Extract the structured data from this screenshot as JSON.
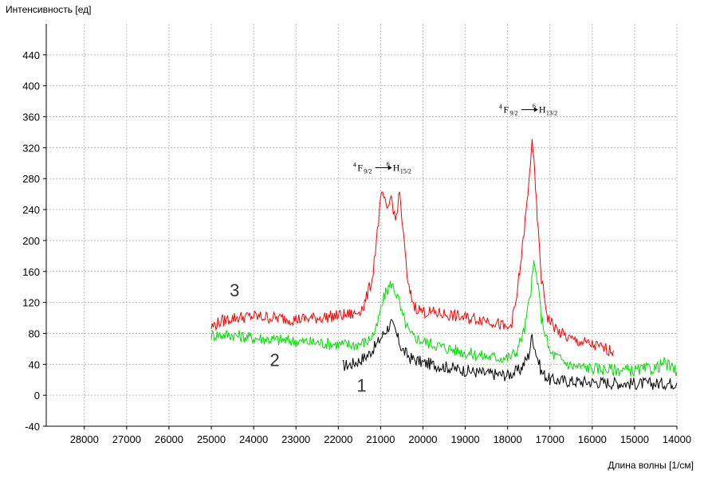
{
  "chart_data": {
    "type": "line",
    "ylabel": "Интенсивность [ед]",
    "xlabel": "Длина волны [1/см]",
    "xlim": [
      28900,
      14000
    ],
    "ylim": [
      -40,
      480
    ],
    "x_ticks": [
      28000,
      27000,
      26000,
      25000,
      24000,
      23000,
      22000,
      21000,
      20000,
      19000,
      18000,
      17000,
      16000,
      15000,
      14000
    ],
    "y_ticks": [
      -40,
      0,
      40,
      80,
      120,
      160,
      200,
      240,
      280,
      320,
      360,
      400,
      440
    ],
    "grid": true,
    "series": [
      {
        "name": "1",
        "color": "#000000",
        "points": [
          [
            21900,
            38
          ],
          [
            21700,
            40
          ],
          [
            21500,
            45
          ],
          [
            21300,
            52
          ],
          [
            21100,
            65
          ],
          [
            20900,
            82
          ],
          [
            20750,
            93
          ],
          [
            20650,
            82
          ],
          [
            20500,
            60
          ],
          [
            20300,
            48
          ],
          [
            20000,
            42
          ],
          [
            19500,
            37
          ],
          [
            19000,
            32
          ],
          [
            18500,
            28
          ],
          [
            18000,
            26
          ],
          [
            17700,
            33
          ],
          [
            17500,
            52
          ],
          [
            17420,
            78
          ],
          [
            17350,
            60
          ],
          [
            17200,
            30
          ],
          [
            17000,
            20
          ],
          [
            16500,
            18
          ],
          [
            16000,
            17
          ],
          [
            15500,
            16
          ],
          [
            15000,
            15
          ],
          [
            14500,
            15
          ],
          [
            14000,
            16
          ]
        ]
      },
      {
        "name": "2",
        "color": "#00dd00",
        "points": [
          [
            25000,
            78
          ],
          [
            24500,
            78
          ],
          [
            24000,
            74
          ],
          [
            23500,
            72
          ],
          [
            23000,
            70
          ],
          [
            22500,
            68
          ],
          [
            22000,
            66
          ],
          [
            21600,
            65
          ],
          [
            21300,
            70
          ],
          [
            21100,
            85
          ],
          [
            21000,
            110
          ],
          [
            20900,
            130
          ],
          [
            20750,
            145
          ],
          [
            20600,
            128
          ],
          [
            20500,
            105
          ],
          [
            20300,
            78
          ],
          [
            20000,
            70
          ],
          [
            19500,
            62
          ],
          [
            19000,
            55
          ],
          [
            18500,
            50
          ],
          [
            18000,
            48
          ],
          [
            17800,
            55
          ],
          [
            17600,
            85
          ],
          [
            17450,
            135
          ],
          [
            17380,
            170
          ],
          [
            17300,
            150
          ],
          [
            17200,
            100
          ],
          [
            17000,
            55
          ],
          [
            16500,
            38
          ],
          [
            16000,
            35
          ],
          [
            15500,
            33
          ],
          [
            15000,
            32
          ],
          [
            14500,
            35
          ],
          [
            14300,
            42
          ],
          [
            14000,
            30
          ]
        ]
      },
      {
        "name": "3",
        "color": "#ff0000",
        "points": [
          [
            25000,
            88
          ],
          [
            24800,
            95
          ],
          [
            24500,
            100
          ],
          [
            24000,
            102
          ],
          [
            23500,
            100
          ],
          [
            23000,
            98
          ],
          [
            22500,
            100
          ],
          [
            22000,
            103
          ],
          [
            21600,
            105
          ],
          [
            21400,
            115
          ],
          [
            21200,
            150
          ],
          [
            21100,
            200
          ],
          [
            21000,
            250
          ],
          [
            20950,
            262
          ],
          [
            20850,
            235
          ],
          [
            20750,
            258
          ],
          [
            20650,
            225
          ],
          [
            20550,
            262
          ],
          [
            20450,
            200
          ],
          [
            20350,
            140
          ],
          [
            20200,
            115
          ],
          [
            20000,
            108
          ],
          [
            19500,
            105
          ],
          [
            19000,
            100
          ],
          [
            18500,
            98
          ],
          [
            18200,
            92
          ],
          [
            18000,
            85
          ],
          [
            17900,
            95
          ],
          [
            17800,
            120
          ],
          [
            17650,
            190
          ],
          [
            17500,
            270
          ],
          [
            17420,
            335
          ],
          [
            17380,
            300
          ],
          [
            17300,
            230
          ],
          [
            17200,
            150
          ],
          [
            17050,
            100
          ],
          [
            16800,
            82
          ],
          [
            16500,
            72
          ],
          [
            16200,
            68
          ],
          [
            16000,
            65
          ],
          [
            15700,
            60
          ],
          [
            15500,
            58
          ]
        ]
      }
    ],
    "curve_labels": [
      {
        "text": "3",
        "x": 24450,
        "y": 128
      },
      {
        "text": "2",
        "x": 23500,
        "y": 38
      },
      {
        "text": "1",
        "x": 21450,
        "y": 5
      }
    ],
    "annotations": [
      {
        "sup1": "4",
        "a": "F",
        "suba": "9/2",
        "sup2": "6",
        "b": "H",
        "subb": "15/2",
        "x": 20900,
        "y": 290
      },
      {
        "sup1": "4",
        "a": "F",
        "suba": "9/2",
        "sup2": "6",
        "b": "H",
        "subb": "13/2",
        "x": 17450,
        "y": 365
      }
    ]
  }
}
